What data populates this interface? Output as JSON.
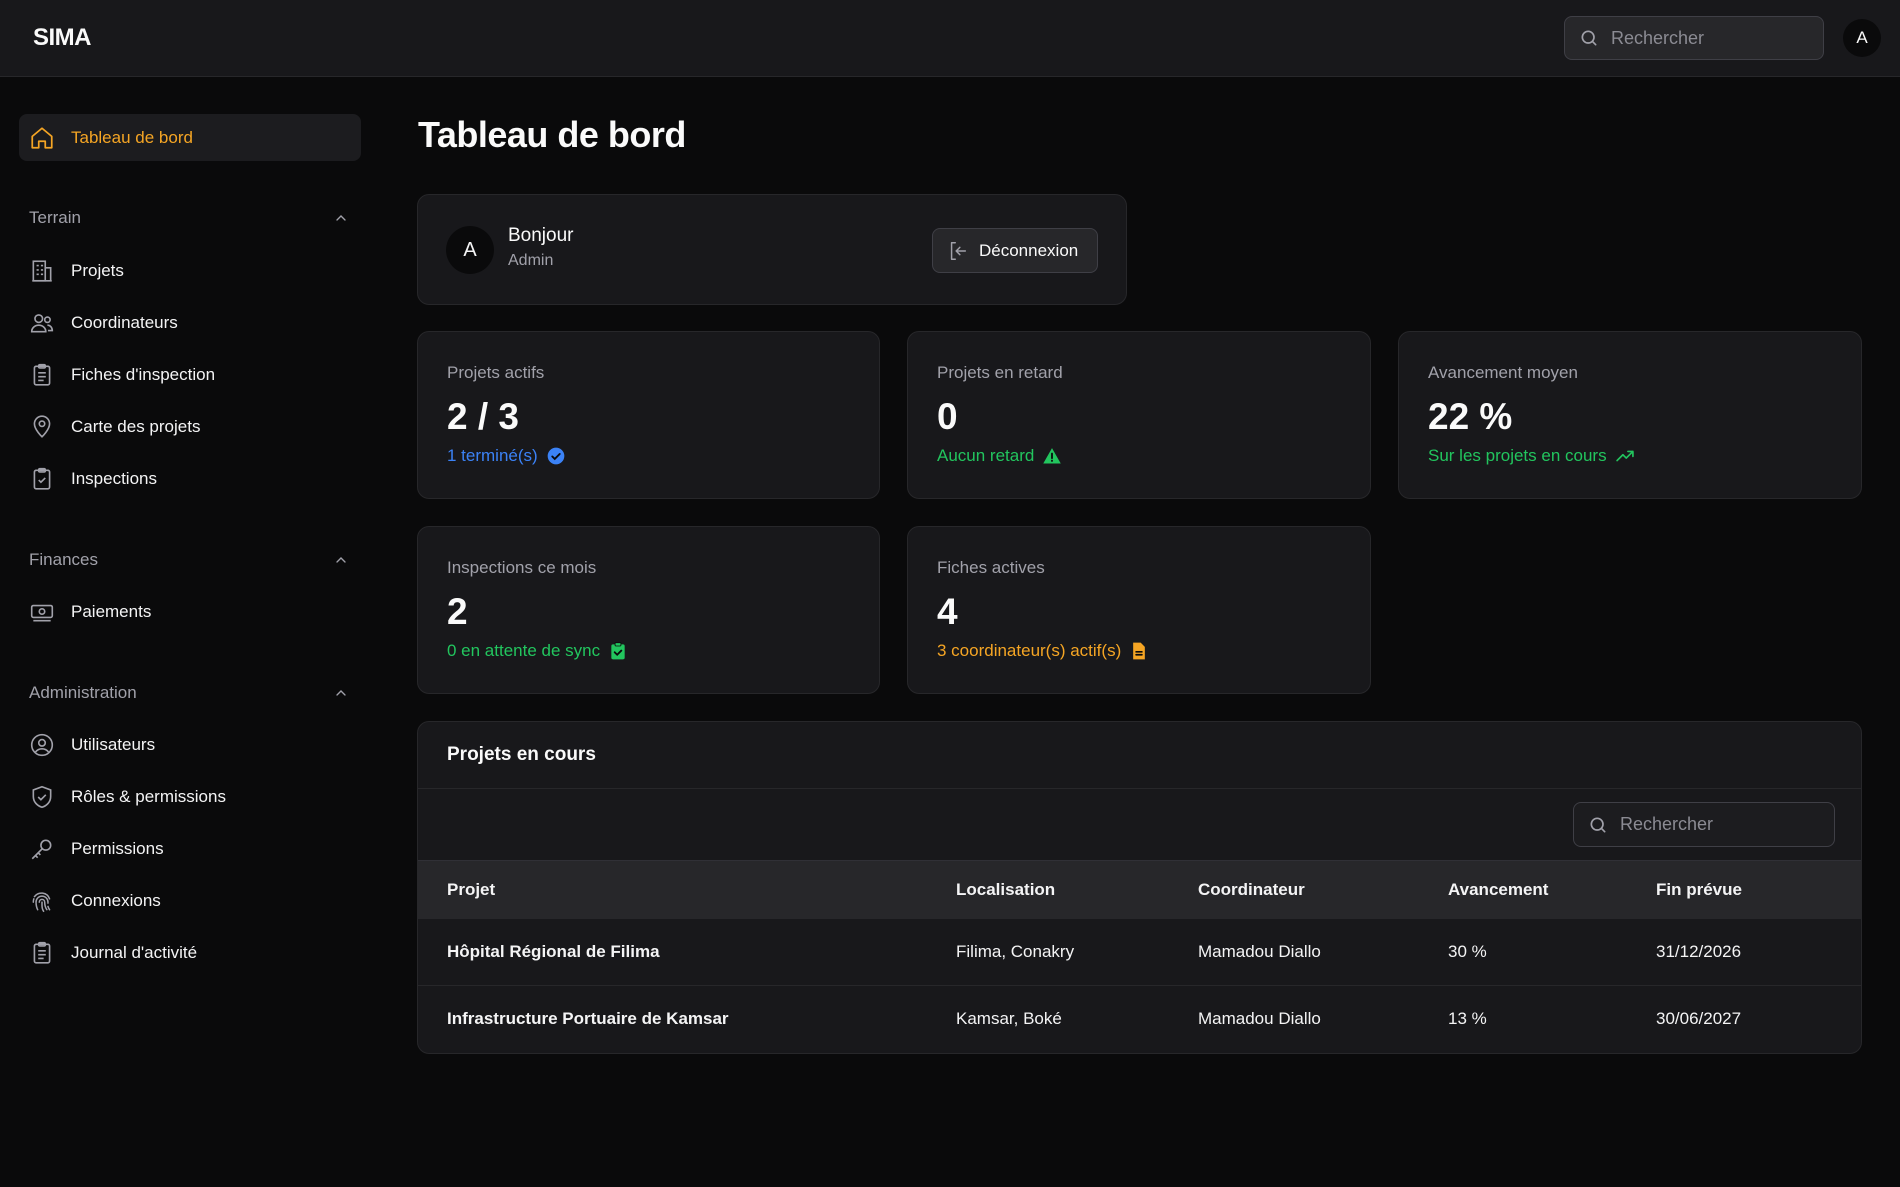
{
  "app": {
    "brand": "SIMA"
  },
  "topbar": {
    "search_placeholder": "Rechercher",
    "avatar_initial": "A"
  },
  "sidebar": {
    "active_item": {
      "label": "Tableau de bord",
      "icon": "home-icon"
    },
    "sections": [
      {
        "title": "Terrain",
        "items": [
          {
            "label": "Projets",
            "icon": "building-icon"
          },
          {
            "label": "Coordinateurs",
            "icon": "users-icon"
          },
          {
            "label": "Fiches d'inspection",
            "icon": "clipboard-list-icon"
          },
          {
            "label": "Carte des projets",
            "icon": "map-pin-icon"
          },
          {
            "label": "Inspections",
            "icon": "clipboard-check-icon"
          }
        ]
      },
      {
        "title": "Finances",
        "items": [
          {
            "label": "Paiements",
            "icon": "banknote-icon"
          }
        ]
      },
      {
        "title": "Administration",
        "items": [
          {
            "label": "Utilisateurs",
            "icon": "user-circle-icon"
          },
          {
            "label": "Rôles & permissions",
            "icon": "shield-check-icon"
          },
          {
            "label": "Permissions",
            "icon": "key-icon"
          },
          {
            "label": "Connexions",
            "icon": "fingerprint-icon"
          },
          {
            "label": "Journal d'activité",
            "icon": "clipboard-list-icon"
          }
        ]
      }
    ]
  },
  "main": {
    "title": "Tableau de bord",
    "welcome": {
      "avatar_initial": "A",
      "greeting": "Bonjour",
      "role": "Admin",
      "logout_label": "Déconnexion"
    },
    "stats": [
      {
        "label": "Projets actifs",
        "value": "2 / 3",
        "sub": "1 terminé(s)",
        "sub_color": "#3b82f6",
        "icon": "check-badge-icon"
      },
      {
        "label": "Projets en retard",
        "value": "0",
        "sub": "Aucun retard",
        "sub_color": "#22c55e",
        "icon": "warning-triangle-icon"
      },
      {
        "label": "Avancement moyen",
        "value": "22 %",
        "sub": "Sur les projets en cours",
        "sub_color": "#22c55e",
        "icon": "trending-up-icon"
      },
      {
        "label": "Inspections ce mois",
        "value": "2",
        "sub": "0 en attente de sync",
        "sub_color": "#22c55e",
        "icon": "clipboard-check-icon"
      },
      {
        "label": "Fiches actives",
        "value": "4",
        "sub": "3 coordinateur(s) actif(s)",
        "sub_color": "#f5a524",
        "icon": "file-text-icon"
      }
    ],
    "projects": {
      "title": "Projets en cours",
      "search_placeholder": "Rechercher",
      "columns": [
        "Projet",
        "Localisation",
        "Coordinateur",
        "Avancement",
        "Fin prévue"
      ],
      "rows": [
        [
          "Hôpital Régional de Filima",
          "Filima, Conakry",
          "Mamadou Diallo",
          "30 %",
          "31/12/2026"
        ],
        [
          "Infrastructure Portuaire de Kamsar",
          "Kamsar, Boké",
          "Mamadou Diallo",
          "13 %",
          "30/06/2027"
        ]
      ]
    }
  },
  "colors": {
    "accent": "#f5a524",
    "background": "#0a0a0b",
    "card": "#18181b"
  }
}
